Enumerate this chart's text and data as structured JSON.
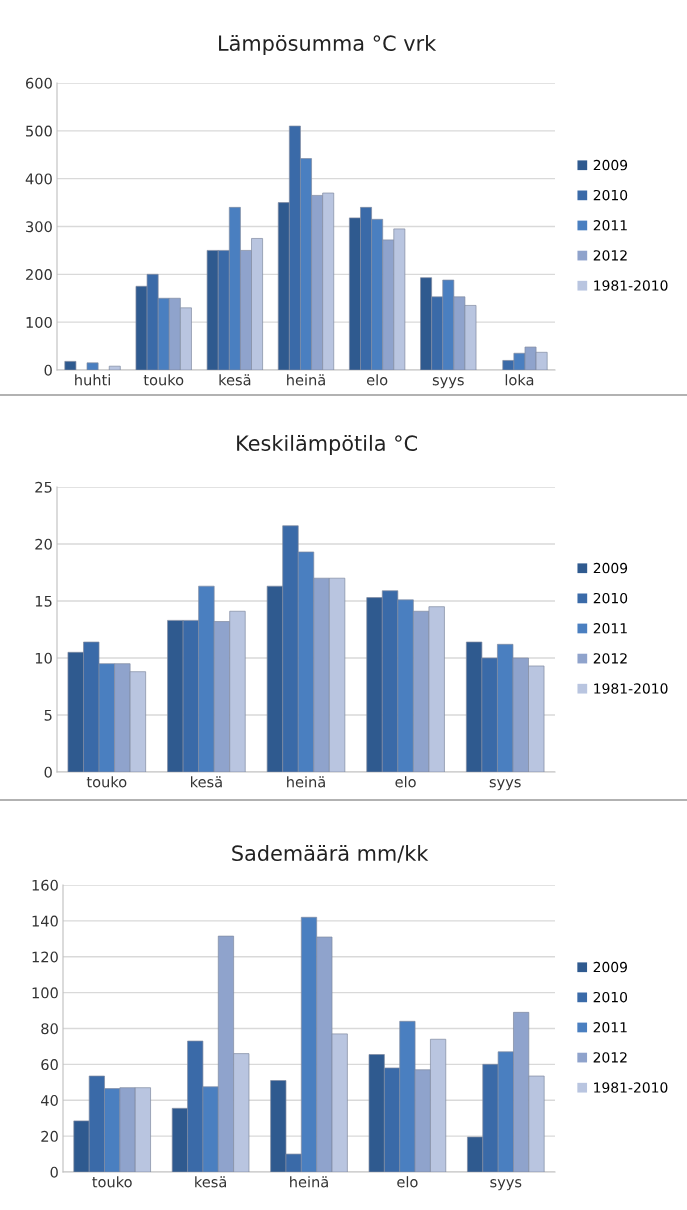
{
  "chart_data": [
    {
      "type": "bar",
      "title": "Lämpösumma °C vrk",
      "categories": [
        "huhti",
        "touko",
        "kesä",
        "heinä",
        "elo",
        "syys",
        "loka"
      ],
      "ylim": [
        0,
        600
      ],
      "yticks": [
        0,
        100,
        200,
        300,
        400,
        500,
        600
      ],
      "grid": "y",
      "legend": "right",
      "series": [
        {
          "name": "2009",
          "color": "#2f5a8f",
          "values": [
            18,
            175,
            250,
            350,
            318,
            193,
            null
          ]
        },
        {
          "name": "2010",
          "color": "#3a6aa8",
          "values": [
            null,
            200,
            250,
            510,
            340,
            153,
            20
          ]
        },
        {
          "name": "2011",
          "color": "#4a7fc0",
          "values": [
            15,
            150,
            340,
            442,
            315,
            188,
            35
          ]
        },
        {
          "name": "2012",
          "color": "#8fa3cc",
          "values": [
            null,
            150,
            250,
            365,
            272,
            153,
            48
          ]
        },
        {
          "name": "1981-2010",
          "color": "#b9c5e0",
          "values": [
            8,
            130,
            275,
            370,
            295,
            135,
            37
          ]
        }
      ]
    },
    {
      "type": "bar",
      "title": "Keskilämpötila °C",
      "categories": [
        "touko",
        "kesä",
        "heinä",
        "elo",
        "syys"
      ],
      "ylim": [
        0,
        25
      ],
      "yticks": [
        0,
        5,
        10,
        15,
        20,
        25
      ],
      "grid": "y",
      "legend": "right",
      "series": [
        {
          "name": "2009",
          "color": "#2f5a8f",
          "values": [
            10.5,
            13.3,
            16.3,
            15.3,
            11.4
          ]
        },
        {
          "name": "2010",
          "color": "#3a6aa8",
          "values": [
            11.4,
            13.3,
            21.6,
            15.9,
            10.0
          ]
        },
        {
          "name": "2011",
          "color": "#4a7fc0",
          "values": [
            9.5,
            16.3,
            19.3,
            15.1,
            11.2
          ]
        },
        {
          "name": "2012",
          "color": "#8fa3cc",
          "values": [
            9.5,
            13.2,
            17.0,
            14.1,
            10.0
          ]
        },
        {
          "name": "1981-2010",
          "color": "#b9c5e0",
          "values": [
            8.8,
            14.1,
            17.0,
            14.5,
            9.3
          ]
        }
      ]
    },
    {
      "type": "bar",
      "title": "Sademäärä mm/kk",
      "categories": [
        "touko",
        "kesä",
        "heinä",
        "elo",
        "syys"
      ],
      "ylim": [
        0,
        160
      ],
      "yticks": [
        0,
        20,
        40,
        60,
        80,
        100,
        120,
        140,
        160
      ],
      "grid": "y",
      "legend": "right",
      "series": [
        {
          "name": "2009",
          "color": "#2f5a8f",
          "values": [
            28.5,
            35.5,
            51,
            65.5,
            19.5
          ]
        },
        {
          "name": "2010",
          "color": "#3a6aa8",
          "values": [
            53.5,
            73,
            10,
            58,
            60
          ]
        },
        {
          "name": "2011",
          "color": "#4a7fc0",
          "values": [
            46.5,
            47.5,
            142,
            84,
            67
          ]
        },
        {
          "name": "2012",
          "color": "#8fa3cc",
          "values": [
            47,
            131.5,
            131,
            57,
            89
          ]
        },
        {
          "name": "1981-2010",
          "color": "#b9c5e0",
          "values": [
            47,
            66,
            77,
            74,
            53.5
          ]
        }
      ]
    }
  ]
}
